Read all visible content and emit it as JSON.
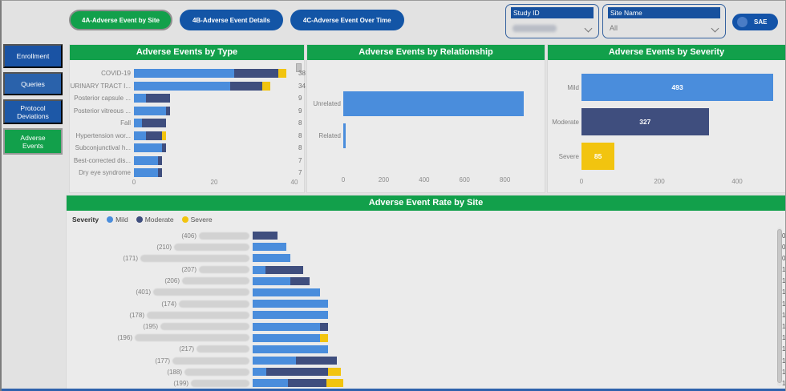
{
  "nav": {
    "tabs": [
      {
        "label": "4A-Adverse Event by Site",
        "active": true
      },
      {
        "label": "4B-Adverse Event Details",
        "active": false
      },
      {
        "label": "4C-Adverse Event Over Time",
        "active": false
      }
    ]
  },
  "filters": {
    "study_id": {
      "label": "Study ID",
      "value": "",
      "redacted": true
    },
    "site_name": {
      "label": "Site Name",
      "value": "All"
    }
  },
  "sae_toggle": {
    "label": "SAE",
    "state": "on"
  },
  "sidebar": {
    "items": [
      {
        "label": "Enrollment",
        "active": false
      },
      {
        "label": "Queries",
        "active": false
      },
      {
        "label": "Protocol Deviations",
        "active": false
      },
      {
        "label": "Adverse Events",
        "active": true
      }
    ]
  },
  "colors": {
    "header_green": "#12a04b",
    "nav_blue": "#1355a6",
    "mild_blue": "#4a8ddc",
    "moderate_navy": "#3f4e7e",
    "severe_yellow": "#f2c40f",
    "filter_header_blue": "#17519e"
  },
  "chart_data": [
    {
      "type": "bar",
      "orientation": "horizontal",
      "stacked": true,
      "title": "Adverse Events by Type",
      "series": [
        {
          "name": "Mild",
          "color": "#4a8ddc"
        },
        {
          "name": "Moderate",
          "color": "#3f4e7e"
        },
        {
          "name": "Severe",
          "color": "#f2c40f"
        }
      ],
      "rows": [
        {
          "label": "COVID-19",
          "segments": [
            25,
            11,
            2
          ],
          "total": "38"
        },
        {
          "label": "URINARY TRACT I...",
          "segments": [
            24,
            8,
            2
          ],
          "total": "34"
        },
        {
          "label": "Posterior capsule ...",
          "segments": [
            3,
            6,
            0
          ],
          "total": "9"
        },
        {
          "label": "Posterior vitreous ...",
          "segments": [
            8,
            1,
            0
          ],
          "total": "9"
        },
        {
          "label": "Fall",
          "segments": [
            2,
            6,
            0
          ],
          "total": "8"
        },
        {
          "label": "Hypertension wor...",
          "segments": [
            3,
            4,
            1
          ],
          "total": "8"
        },
        {
          "label": "Subconjunctival h...",
          "segments": [
            7,
            1,
            0
          ],
          "total": "8"
        },
        {
          "label": "Best-corrected dis...",
          "segments": [
            6,
            1,
            0
          ],
          "total": "7"
        },
        {
          "label": "Dry eye syndrome",
          "segments": [
            6,
            1,
            0
          ],
          "total": "7"
        }
      ],
      "xlim": [
        0,
        40
      ],
      "x_ticks": [
        0,
        20,
        40
      ],
      "value_label_position": "outside",
      "grid": false
    },
    {
      "type": "bar",
      "orientation": "horizontal",
      "stacked": false,
      "title": "Adverse Events by Relationship",
      "series": [
        {
          "name": "Count",
          "color": "#4a8ddc"
        }
      ],
      "rows": [
        {
          "label": "Unrelated",
          "segments": [
            892
          ],
          "total": "892"
        },
        {
          "label": "Related",
          "segments": [
            13
          ],
          "total": "13"
        }
      ],
      "xlim": [
        0,
        1000
      ],
      "x_ticks": [
        0,
        200,
        400,
        600,
        800
      ],
      "value_label_position": "outside",
      "grid": false
    },
    {
      "type": "bar",
      "orientation": "horizontal",
      "stacked": false,
      "title": "Adverse Events by Severity",
      "series": [
        {
          "name": "Mild",
          "color": "#4a8ddc"
        },
        {
          "name": "Moderate",
          "color": "#3f4e7e"
        },
        {
          "name": "Severe",
          "color": "#f2c40f"
        }
      ],
      "rows": [
        {
          "label": "Mild",
          "segments": [
            493,
            0,
            0
          ],
          "total": "493"
        },
        {
          "label": "Moderate",
          "segments": [
            0,
            327,
            0
          ],
          "total": "327"
        },
        {
          "label": "Severe",
          "segments": [
            0,
            0,
            85
          ],
          "total": "85"
        }
      ],
      "xlim": [
        0,
        505
      ],
      "x_ticks": [
        0,
        200,
        400
      ],
      "value_label_position": "inside",
      "grid": false
    },
    {
      "type": "bar",
      "orientation": "horizontal",
      "stacked": true,
      "title": "Adverse Event Rate by Site",
      "legend": {
        "title": "Severity",
        "position": "top-left"
      },
      "series": [
        {
          "name": "Mild",
          "color": "#4a8ddc"
        },
        {
          "name": "Moderate",
          "color": "#3f4e7e"
        },
        {
          "name": "Severe",
          "color": "#f2c40f"
        }
      ],
      "rows": [
        {
          "label": "(406)",
          "redacted_site": true,
          "blur_width": 63,
          "segments": [
            0,
            0.5,
            0
          ],
          "total": "0.50"
        },
        {
          "label": "(210)",
          "redacted_site": true,
          "blur_width": 94,
          "segments": [
            0.67,
            0,
            0
          ],
          "total": "0.67"
        },
        {
          "label": "(171)",
          "redacted_site": true,
          "blur_width": 136,
          "segments": [
            0.75,
            0,
            0
          ],
          "total": "0.75"
        },
        {
          "label": "(207)",
          "redacted_site": true,
          "blur_width": 63,
          "segments": [
            0.25,
            0.75,
            0
          ],
          "total": "1.00"
        },
        {
          "label": "(206)",
          "redacted_site": true,
          "blur_width": 84,
          "segments": [
            0.75,
            0.38,
            0
          ],
          "total": "1.13"
        },
        {
          "label": "(401)",
          "redacted_site": true,
          "blur_width": 120,
          "segments": [
            1.33,
            0,
            0
          ],
          "total": "1.33"
        },
        {
          "label": "(174)",
          "redacted_site": true,
          "blur_width": 88,
          "segments": [
            1.5,
            0,
            0
          ],
          "total": "1.50"
        },
        {
          "label": "(178)",
          "redacted_site": true,
          "blur_width": 128,
          "segments": [
            1.5,
            0,
            0
          ],
          "total": "1.50"
        },
        {
          "label": "(195)",
          "redacted_site": true,
          "blur_width": 111,
          "segments": [
            1.33,
            0.17,
            0
          ],
          "total": "1.50"
        },
        {
          "label": "(196)",
          "redacted_site": true,
          "blur_width": 143,
          "segments": [
            1.33,
            0,
            0.17
          ],
          "total": "1.50"
        },
        {
          "label": "(217)",
          "redacted_site": true,
          "blur_width": 66,
          "segments": [
            1.5,
            0,
            0
          ],
          "total": "1.50"
        },
        {
          "label": "(177)",
          "redacted_site": true,
          "blur_width": 96,
          "segments": [
            0.85,
            0.82,
            0
          ],
          "total": "1.67"
        },
        {
          "label": "(188)",
          "redacted_site": true,
          "blur_width": 81,
          "segments": [
            0.27,
            1.23,
            0.25
          ],
          "total": "1.75"
        },
        {
          "label": "(199)",
          "redacted_site": true,
          "blur_width": 73,
          "segments": [
            0.7,
            0.76,
            0.34
          ],
          "total": "1.80"
        }
      ],
      "xlim": [
        0,
        10.4
      ],
      "x_ticks": [],
      "value_label_position": "outside",
      "grid": false
    }
  ]
}
